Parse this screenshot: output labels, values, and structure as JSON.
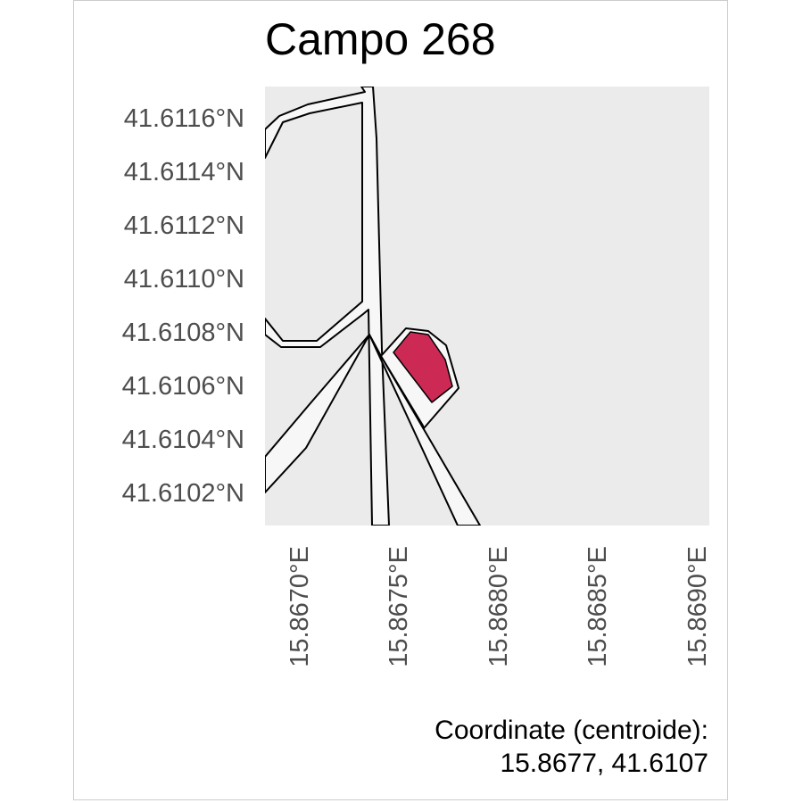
{
  "map": {
    "title": "Campo 268",
    "y_ticks": [
      "41.6116°N",
      "41.6114°N",
      "41.6112°N",
      "41.6110°N",
      "41.6108°N",
      "41.6106°N",
      "41.6104°N",
      "41.6102°N"
    ],
    "x_ticks": [
      "15.8670°E",
      "15.8675°E",
      "15.8680°E",
      "15.8685°E",
      "15.8690°E"
    ],
    "caption_line1": "Coordinate (centroide):",
    "caption_line2": "15.8677, 41.6107",
    "colors": {
      "background": "#ebebeb",
      "road_fill": "#f7f7f7",
      "outline": "#000000",
      "field": "#cc2a55"
    }
  }
}
